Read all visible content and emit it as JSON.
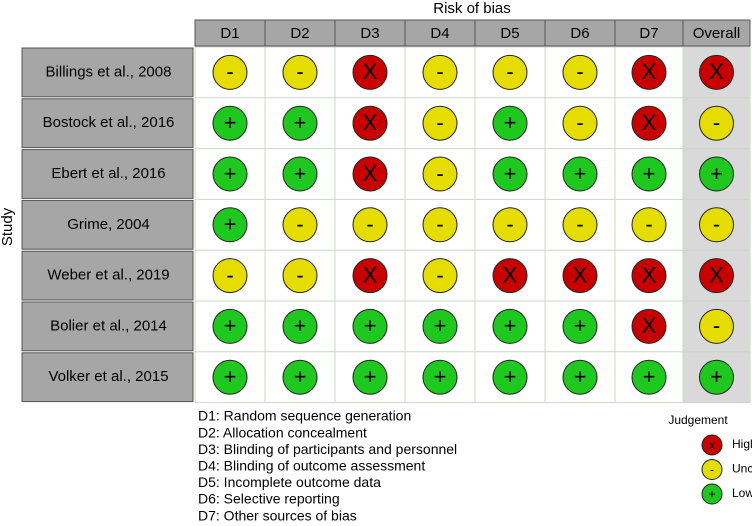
{
  "title": "Risk of bias",
  "y_label": "Study",
  "columns": [
    "D1",
    "D2",
    "D3",
    "D4",
    "D5",
    "D6",
    "D7",
    "Overall"
  ],
  "rows": [
    {
      "study": "Billings et al., 2008",
      "judgements": [
        "-",
        "-",
        "X",
        "-",
        "-",
        "-",
        "X",
        "X"
      ]
    },
    {
      "study": "Bostock et al., 2016",
      "judgements": [
        "+",
        "+",
        "X",
        "-",
        "+",
        "-",
        "X",
        "-"
      ]
    },
    {
      "study": "Ebert et al., 2016",
      "judgements": [
        "+",
        "+",
        "X",
        "-",
        "+",
        "+",
        "+",
        "+"
      ]
    },
    {
      "study": "Grime, 2004",
      "judgements": [
        "+",
        "-",
        "-",
        "-",
        "-",
        "-",
        "-",
        "-"
      ]
    },
    {
      "study": "Weber et al., 2019",
      "judgements": [
        "-",
        "-",
        "X",
        "-",
        "X",
        "X",
        "X",
        "X"
      ]
    },
    {
      "study": "Bolier et al., 2014",
      "judgements": [
        "+",
        "+",
        "+",
        "+",
        "+",
        "+",
        "X",
        "-"
      ]
    },
    {
      "study": "Volker et al., 2015",
      "judgements": [
        "+",
        "+",
        "+",
        "+",
        "+",
        "+",
        "+",
        "+"
      ]
    }
  ],
  "domains": [
    "D1: Random sequence generation",
    "D2: Allocation concealment",
    "D3: Blinding of participants and personnel",
    "D4: Blinding of outcome assessment",
    "D5: Incomplete outcome data",
    "D6: Selective reporting",
    "D7: Other sources of bias"
  ],
  "legend": {
    "title": "Judgement",
    "items": [
      {
        "symbol": "x",
        "label": "High",
        "color": "#c80000"
      },
      {
        "symbol": "-",
        "label": "Unclear",
        "color": "#e5dc00"
      },
      {
        "symbol": "+",
        "label": "Low",
        "color": "#1ec81e"
      }
    ]
  }
}
